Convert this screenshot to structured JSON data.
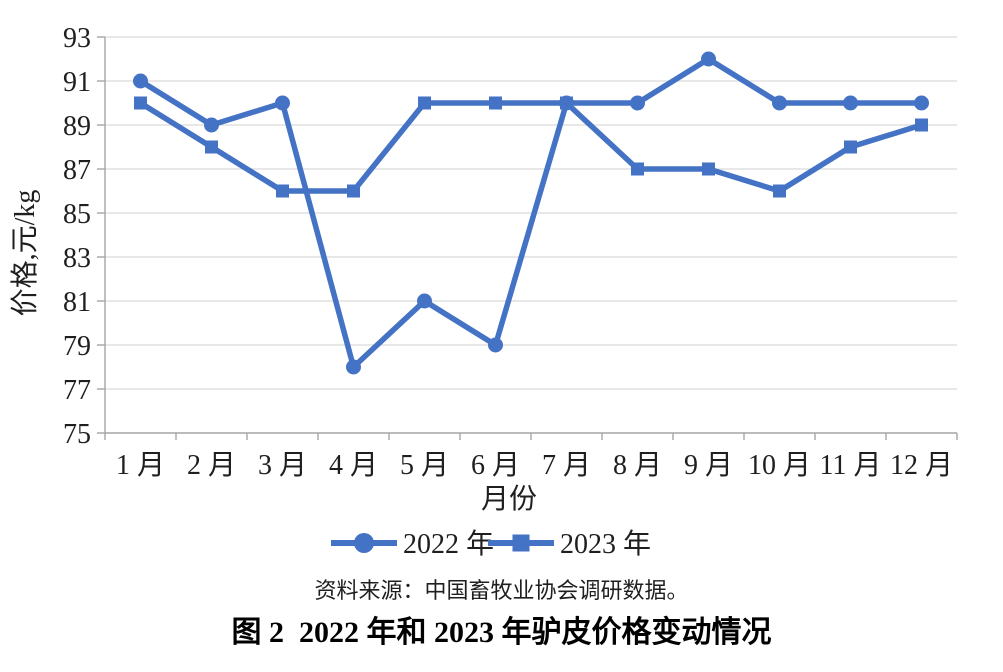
{
  "chart_data": {
    "type": "line",
    "title": "图 2  2022 年和 2023 年驴皮价格变动情况",
    "source_note": "资料来源：中国畜牧业协会调研数据。",
    "xlabel": "月份",
    "ylabel": "价格,元/kg",
    "categories": [
      "1 月",
      "2 月",
      "3 月",
      "4 月",
      "5 月",
      "6 月",
      "7 月",
      "8 月",
      "9 月",
      "10 月",
      "11 月",
      "12 月"
    ],
    "series": [
      {
        "name": "2022 年",
        "marker": "circle",
        "values": [
          91,
          89,
          90,
          78,
          81,
          79,
          90,
          90,
          92,
          90,
          90,
          90
        ]
      },
      {
        "name": "2023 年",
        "marker": "square",
        "values": [
          90,
          88,
          86,
          86,
          90,
          90,
          90,
          87,
          87,
          86,
          88,
          89
        ]
      }
    ],
    "ylim": [
      75,
      93
    ],
    "ytick_step": 2,
    "yticks": [
      75,
      77,
      79,
      81,
      83,
      85,
      87,
      89,
      91,
      93
    ],
    "grid": true,
    "legend_position": "bottom",
    "colors": {
      "series": "#4472C4",
      "gridline": "#D9D9D9",
      "axis": "#A6A6A6",
      "text": "#1F1F1F"
    }
  }
}
